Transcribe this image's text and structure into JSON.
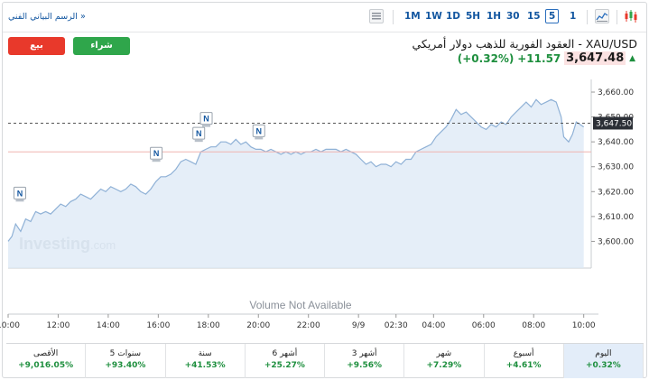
{
  "toolbar": {
    "technical_chart_link": "الرسم البياني الفني »",
    "timeframes": [
      "1M",
      "1W",
      "1D",
      "5H",
      "1H",
      "30",
      "15",
      "5",
      "1"
    ],
    "active_timeframe": "5"
  },
  "header": {
    "sell_label": "بيع",
    "buy_label": "شراء",
    "title": "XAU/USD - العقود الفورية للذهب دولار أمريكي",
    "last_price": "3,647.48",
    "change": "+11.57",
    "change_pct": "(+0.32%)"
  },
  "colors": {
    "up": "#1e8f3e",
    "down": "#e8392b",
    "line": "#8fb1d6",
    "fill": "#dce8f5"
  },
  "chart_data": {
    "type": "area",
    "watermark": "Investing.com",
    "watermark_main": "Investing",
    "watermark_suffix": ".com",
    "volume_text": "Volume Not Available",
    "x_labels": [
      "10:00",
      "12:00",
      "14:00",
      "16:00",
      "18:00",
      "20:00",
      "22:00",
      "9/9",
      "02:30",
      "04:00",
      "06:00",
      "08:00",
      "10:00"
    ],
    "x_positions": [
      0,
      2,
      4,
      6,
      8,
      10,
      12,
      14,
      15.5,
      17,
      19,
      21,
      23
    ],
    "y_ticks": [
      "3,660.00",
      "3,650.00",
      "3,640.00",
      "3,630.00",
      "3,620.00",
      "3,610.00",
      "3,600.00"
    ],
    "y_tick_values": [
      3660,
      3650,
      3640,
      3630,
      3620,
      3610,
      3600
    ],
    "ylim": [
      3590,
      3664
    ],
    "xlim": [
      0,
      23.3
    ],
    "last_value_label": "3,647.50",
    "last_value": 3647.5,
    "reference_value": 3636,
    "news_markers": [
      {
        "label": "N",
        "x": 0.45,
        "y": 3616
      },
      {
        "label": "N",
        "x": 5.9,
        "y": 3632
      },
      {
        "label": "N",
        "x": 7.6,
        "y": 3640
      },
      {
        "label": "N",
        "x": 7.9,
        "y": 3646
      },
      {
        "label": "N",
        "x": 10.0,
        "y": 3641
      }
    ],
    "series": [
      {
        "values": [
          [
            0,
            3600
          ],
          [
            0.15,
            3602
          ],
          [
            0.3,
            3607
          ],
          [
            0.5,
            3604
          ],
          [
            0.7,
            3609
          ],
          [
            0.9,
            3608
          ],
          [
            1.1,
            3612
          ],
          [
            1.3,
            3611
          ],
          [
            1.5,
            3612
          ],
          [
            1.7,
            3611
          ],
          [
            1.9,
            3613
          ],
          [
            2.1,
            3615
          ],
          [
            2.3,
            3614
          ],
          [
            2.5,
            3616
          ],
          [
            2.7,
            3617
          ],
          [
            2.9,
            3619
          ],
          [
            3.1,
            3618
          ],
          [
            3.3,
            3617
          ],
          [
            3.5,
            3619
          ],
          [
            3.7,
            3621
          ],
          [
            3.9,
            3620
          ],
          [
            4.1,
            3622
          ],
          [
            4.3,
            3621
          ],
          [
            4.5,
            3620
          ],
          [
            4.7,
            3621
          ],
          [
            4.9,
            3623
          ],
          [
            5.1,
            3622
          ],
          [
            5.3,
            3620
          ],
          [
            5.5,
            3619
          ],
          [
            5.7,
            3621
          ],
          [
            5.9,
            3624
          ],
          [
            6.1,
            3626
          ],
          [
            6.3,
            3626
          ],
          [
            6.5,
            3627
          ],
          [
            6.7,
            3629
          ],
          [
            6.9,
            3632
          ],
          [
            7.1,
            3633
          ],
          [
            7.3,
            3632
          ],
          [
            7.5,
            3631
          ],
          [
            7.7,
            3636
          ],
          [
            7.9,
            3637
          ],
          [
            8.1,
            3638
          ],
          [
            8.3,
            3638
          ],
          [
            8.5,
            3640
          ],
          [
            8.7,
            3640
          ],
          [
            8.9,
            3639
          ],
          [
            9.1,
            3641
          ],
          [
            9.3,
            3639
          ],
          [
            9.5,
            3640
          ],
          [
            9.7,
            3638
          ],
          [
            9.9,
            3637
          ],
          [
            10.1,
            3637
          ],
          [
            10.3,
            3636
          ],
          [
            10.5,
            3637
          ],
          [
            10.7,
            3636
          ],
          [
            10.9,
            3635
          ],
          [
            11.1,
            3636
          ],
          [
            11.3,
            3635
          ],
          [
            11.5,
            3636
          ],
          [
            11.7,
            3635
          ],
          [
            11.9,
            3636
          ],
          [
            12.1,
            3636
          ],
          [
            12.3,
            3637
          ],
          [
            12.5,
            3636
          ],
          [
            12.7,
            3637
          ],
          [
            12.9,
            3637
          ],
          [
            13.1,
            3637
          ],
          [
            13.3,
            3636
          ],
          [
            13.5,
            3637
          ],
          [
            13.7,
            3636
          ],
          [
            13.9,
            3635
          ],
          [
            14.1,
            3633
          ],
          [
            14.3,
            3631
          ],
          [
            14.5,
            3632
          ],
          [
            14.7,
            3630
          ],
          [
            14.9,
            3631
          ],
          [
            15.1,
            3631
          ],
          [
            15.3,
            3630
          ],
          [
            15.5,
            3632
          ],
          [
            15.7,
            3631
          ],
          [
            15.9,
            3633
          ],
          [
            16.1,
            3633
          ],
          [
            16.3,
            3636
          ],
          [
            16.5,
            3637
          ],
          [
            16.7,
            3638
          ],
          [
            16.9,
            3639
          ],
          [
            17.1,
            3642
          ],
          [
            17.3,
            3644
          ],
          [
            17.5,
            3646
          ],
          [
            17.7,
            3649
          ],
          [
            17.9,
            3653
          ],
          [
            18.1,
            3651
          ],
          [
            18.3,
            3652
          ],
          [
            18.5,
            3650
          ],
          [
            18.7,
            3648
          ],
          [
            18.9,
            3646
          ],
          [
            19.1,
            3645
          ],
          [
            19.3,
            3647
          ],
          [
            19.5,
            3646
          ],
          [
            19.7,
            3648
          ],
          [
            19.9,
            3647
          ],
          [
            20.1,
            3650
          ],
          [
            20.3,
            3652
          ],
          [
            20.5,
            3654
          ],
          [
            20.7,
            3656
          ],
          [
            20.9,
            3654
          ],
          [
            21.1,
            3657
          ],
          [
            21.3,
            3655
          ],
          [
            21.5,
            3656
          ],
          [
            21.7,
            3657
          ],
          [
            21.9,
            3656
          ],
          [
            22.1,
            3650
          ],
          [
            22.2,
            3642
          ],
          [
            22.3,
            3641
          ],
          [
            22.4,
            3640
          ],
          [
            22.55,
            3643
          ],
          [
            22.7,
            3648
          ],
          [
            22.85,
            3647
          ],
          [
            23.0,
            3646
          ]
        ]
      }
    ]
  },
  "periods": [
    {
      "label": "اليوم",
      "value": "+0.32%"
    },
    {
      "label": "أسبوع",
      "value": "+4.61%"
    },
    {
      "label": "شهر",
      "value": "+7.29%"
    },
    {
      "label": "3 أشهر",
      "value": "+9.56%"
    },
    {
      "label": "6 أشهر",
      "value": "+25.27%"
    },
    {
      "label": "سنة",
      "value": "+41.53%"
    },
    {
      "label": "5 سنوات",
      "value": "+93.40%"
    },
    {
      "label": "الأقصى",
      "value": "+9,016.05%"
    }
  ]
}
